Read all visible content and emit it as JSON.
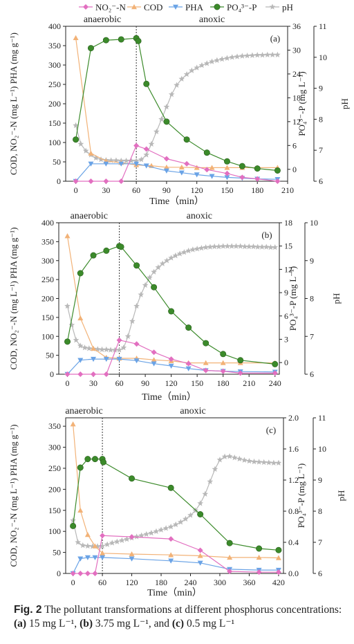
{
  "legend": [
    {
      "key": "no2",
      "label": "NO₂⁻-N",
      "color": "#e26fc0",
      "marker": "diamond"
    },
    {
      "key": "cod",
      "label": "COD",
      "color": "#f2b277",
      "marker": "triangle-up"
    },
    {
      "key": "pha",
      "label": "PHA",
      "color": "#6aa3e6",
      "marker": "triangle-down"
    },
    {
      "key": "po4",
      "label": "PO₄³⁻-P",
      "color": "#3b8a2a",
      "marker": "circle"
    },
    {
      "key": "ph",
      "label": "pH",
      "color": "#b8b8b8",
      "marker": "star"
    }
  ],
  "labels": {
    "y_left": "COD, NO₂⁻-N (mg L⁻¹) PHA (mg g⁻¹)",
    "y_right1": "PO₄³⁻-P (mg L⁻¹)",
    "y_right2": "pH",
    "x": "Time（min）",
    "phase_anaerobic": "anaerobic",
    "phase_anoxic": "anoxic"
  },
  "caption": {
    "fig_label": "Fig. 2",
    "text_before": " The pollutant transformations at different phosphorus concentrations: ",
    "a_label": "(a)",
    "a_value": " 15 mg L⁻¹, ",
    "b_label": "(b)",
    "b_value": " 3.75 mg L⁻¹, and ",
    "c_label": "(c)",
    "c_value": " 0.5 mg L⁻¹"
  },
  "chart_data": [
    {
      "panel": "(a)",
      "type": "line",
      "xlim": [
        -10,
        210
      ],
      "xticks": [
        0,
        30,
        60,
        90,
        120,
        150,
        180,
        210
      ],
      "left_ylim": [
        0,
        400
      ],
      "left_ticks": [
        0,
        50,
        100,
        150,
        200,
        250,
        300,
        350,
        400
      ],
      "po4_ylim": [
        -3,
        36
      ],
      "po4_ticks": [
        0,
        6,
        12,
        18,
        24,
        30,
        36
      ],
      "ph_ylim": [
        6,
        11
      ],
      "ph_ticks": [
        6,
        7,
        8,
        9,
        10,
        11
      ],
      "divider_x": 60,
      "series": [
        {
          "key": "cod",
          "axis": "left",
          "x": [
            0,
            15,
            30,
            45,
            60,
            75,
            90,
            105,
            120,
            135,
            150,
            165,
            180,
            200
          ],
          "y": [
            370,
            72,
            52,
            48,
            42,
            40,
            36,
            36,
            35,
            35,
            35,
            35,
            35,
            35
          ]
        },
        {
          "key": "pha",
          "axis": "left",
          "x": [
            0,
            15,
            30,
            45,
            60,
            70,
            90,
            105,
            120,
            135,
            150,
            165,
            180,
            200
          ],
          "y": [
            0,
            45,
            45,
            45,
            45,
            40,
            27,
            22,
            17,
            13,
            10,
            8,
            6,
            5
          ]
        },
        {
          "key": "no2",
          "axis": "left",
          "x": [
            0,
            15,
            30,
            45,
            60,
            70,
            90,
            110,
            130,
            150,
            165,
            180,
            200
          ],
          "y": [
            0,
            0,
            0,
            0,
            92,
            83,
            58,
            45,
            30,
            20,
            10,
            6,
            0
          ]
        },
        {
          "key": "po4",
          "axis": "po4",
          "x": [
            0,
            15,
            30,
            45,
            60,
            62,
            70,
            90,
            110,
            130,
            150,
            165,
            180,
            200
          ],
          "y": [
            7.5,
            30.5,
            32.5,
            32.7,
            33,
            32.3,
            21.5,
            12,
            7.5,
            4.2,
            2,
            0.8,
            0.2,
            -0.3
          ]
        },
        {
          "key": "ph",
          "axis": "ph",
          "x": [
            0,
            5,
            10,
            15,
            20,
            25,
            30,
            35,
            40,
            45,
            50,
            55,
            60,
            65,
            70,
            75,
            80,
            85,
            90,
            95,
            100,
            105,
            110,
            115,
            120,
            125,
            130,
            135,
            140,
            145,
            150,
            155,
            160,
            165,
            170,
            175,
            180,
            185,
            190,
            195,
            200
          ],
          "y": [
            7.8,
            7.2,
            6.98,
            6.85,
            6.75,
            6.7,
            6.68,
            6.67,
            6.67,
            6.66,
            6.66,
            6.66,
            6.66,
            6.7,
            6.85,
            7.2,
            7.6,
            8.0,
            8.4,
            8.8,
            9.1,
            9.3,
            9.45,
            9.57,
            9.66,
            9.74,
            9.8,
            9.86,
            9.9,
            9.94,
            9.97,
            10.0,
            10.02,
            10.04,
            10.05,
            10.06,
            10.07,
            10.07,
            10.08,
            10.08,
            10.08
          ]
        }
      ]
    },
    {
      "panel": "(b)",
      "type": "line",
      "xlim": [
        -10,
        245
      ],
      "xticks": [
        0,
        30,
        60,
        90,
        120,
        150,
        180,
        210,
        240
      ],
      "left_ylim": [
        0,
        400
      ],
      "left_ticks": [
        0,
        50,
        100,
        150,
        200,
        250,
        300,
        350,
        400
      ],
      "po4_ylim": [
        -1.5,
        18
      ],
      "po4_ticks": [
        0,
        3,
        6,
        9,
        12,
        15,
        18
      ],
      "ph_ylim": [
        6,
        10
      ],
      "ph_ticks": [
        6,
        7,
        8,
        9,
        10
      ],
      "divider_x": 60,
      "series": [
        {
          "key": "cod",
          "axis": "left",
          "x": [
            0,
            15,
            30,
            45,
            60,
            80,
            100,
            120,
            140,
            160,
            180,
            200,
            240
          ],
          "y": [
            365,
            148,
            68,
            44,
            42,
            42,
            38,
            35,
            30,
            30,
            30,
            30,
            30
          ]
        },
        {
          "key": "pha",
          "axis": "left",
          "x": [
            0,
            15,
            30,
            45,
            60,
            80,
            100,
            120,
            140,
            160,
            180,
            200,
            240
          ],
          "y": [
            0,
            37,
            40,
            40,
            40,
            36,
            28,
            22,
            15,
            10,
            8,
            7,
            6
          ]
        },
        {
          "key": "no2",
          "axis": "left",
          "x": [
            0,
            15,
            30,
            45,
            60,
            80,
            100,
            120,
            140,
            160,
            180,
            200,
            240
          ],
          "y": [
            0,
            0,
            0,
            0,
            90,
            80,
            58,
            40,
            28,
            10,
            8,
            3,
            3
          ]
        },
        {
          "key": "po4",
          "axis": "po4",
          "x": [
            0,
            15,
            30,
            45,
            60,
            62,
            80,
            100,
            120,
            140,
            160,
            180,
            200,
            240
          ],
          "y": [
            2.7,
            11.5,
            13.8,
            14.4,
            15,
            14.9,
            12.5,
            9.7,
            6.6,
            4.5,
            2.5,
            1.1,
            0.3,
            -0.2
          ]
        },
        {
          "key": "ph",
          "axis": "ph",
          "x": [
            0,
            5,
            10,
            15,
            20,
            25,
            30,
            35,
            40,
            45,
            50,
            55,
            60,
            65,
            70,
            75,
            80,
            85,
            90,
            95,
            100,
            105,
            110,
            115,
            120,
            125,
            130,
            135,
            140,
            145,
            150,
            155,
            160,
            165,
            170,
            175,
            180,
            185,
            190,
            195,
            200,
            205,
            210,
            215,
            220,
            225,
            230,
            235,
            240
          ],
          "y": [
            7.8,
            7.3,
            6.9,
            6.75,
            6.7,
            6.68,
            6.67,
            6.66,
            6.65,
            6.65,
            6.64,
            6.64,
            6.64,
            6.7,
            7.0,
            7.4,
            7.8,
            8.1,
            8.35,
            8.55,
            8.7,
            8.82,
            8.92,
            9.0,
            9.07,
            9.13,
            9.18,
            9.22,
            9.26,
            9.29,
            9.31,
            9.33,
            9.35,
            9.36,
            9.37,
            9.37,
            9.38,
            9.38,
            9.38,
            9.38,
            9.38,
            9.37,
            9.37,
            9.37,
            9.36,
            9.36,
            9.36,
            9.35,
            9.35
          ]
        }
      ]
    },
    {
      "panel": "(c)",
      "type": "line",
      "xlim": [
        -15,
        430
      ],
      "xticks": [
        0,
        60,
        120,
        180,
        240,
        300,
        360,
        420
      ],
      "left_ylim": [
        0,
        370
      ],
      "left_ticks": [
        0,
        50,
        100,
        150,
        200,
        250,
        300,
        350
      ],
      "po4_ylim": [
        0,
        2.0
      ],
      "po4_ticks": [
        0.0,
        0.4,
        0.8,
        1.2,
        1.6,
        2.0
      ],
      "ph_ylim": [
        6,
        11
      ],
      "ph_ticks": [
        6,
        7,
        8,
        9,
        10,
        11
      ],
      "divider_x": 60,
      "series": [
        {
          "key": "cod",
          "axis": "left",
          "x": [
            0,
            15,
            30,
            45,
            60,
            120,
            200,
            260,
            320,
            380,
            420
          ],
          "y": [
            355,
            150,
            92,
            65,
            48,
            46,
            44,
            42,
            38,
            38,
            37
          ]
        },
        {
          "key": "pha",
          "axis": "left",
          "x": [
            0,
            15,
            30,
            45,
            60,
            120,
            200,
            260,
            320,
            380,
            420
          ],
          "y": [
            0,
            35,
            38,
            38,
            38,
            35,
            30,
            25,
            10,
            8,
            8
          ]
        },
        {
          "key": "no2",
          "axis": "left",
          "x": [
            0,
            15,
            30,
            45,
            60,
            120,
            200,
            260,
            320,
            380,
            420
          ],
          "y": [
            0,
            0,
            0,
            0,
            90,
            87,
            82,
            55,
            5,
            3,
            3
          ]
        },
        {
          "key": "po4",
          "axis": "po4",
          "x": [
            0,
            15,
            30,
            45,
            60,
            62,
            120,
            200,
            260,
            320,
            380,
            420
          ],
          "y": [
            0.61,
            1.36,
            1.47,
            1.47,
            1.47,
            1.43,
            1.22,
            1.1,
            0.76,
            0.39,
            0.32,
            0.3
          ]
        },
        {
          "key": "ph",
          "axis": "ph",
          "x": [
            0,
            10,
            20,
            30,
            40,
            50,
            60,
            70,
            80,
            90,
            100,
            110,
            120,
            130,
            140,
            150,
            160,
            170,
            180,
            190,
            200,
            210,
            220,
            230,
            240,
            250,
            260,
            270,
            280,
            290,
            300,
            310,
            320,
            330,
            340,
            350,
            360,
            370,
            380,
            390,
            400,
            410,
            420
          ],
          "y": [
            7.7,
            7.0,
            6.9,
            6.88,
            6.87,
            6.87,
            6.88,
            6.93,
            6.98,
            7.02,
            7.06,
            7.1,
            7.14,
            7.18,
            7.22,
            7.26,
            7.3,
            7.35,
            7.4,
            7.45,
            7.5,
            7.57,
            7.65,
            7.75,
            7.87,
            8.02,
            8.25,
            8.55,
            8.95,
            9.35,
            9.65,
            9.75,
            9.76,
            9.72,
            9.68,
            9.64,
            9.61,
            9.59,
            9.58,
            9.57,
            9.56,
            9.55,
            9.55
          ]
        }
      ]
    }
  ]
}
